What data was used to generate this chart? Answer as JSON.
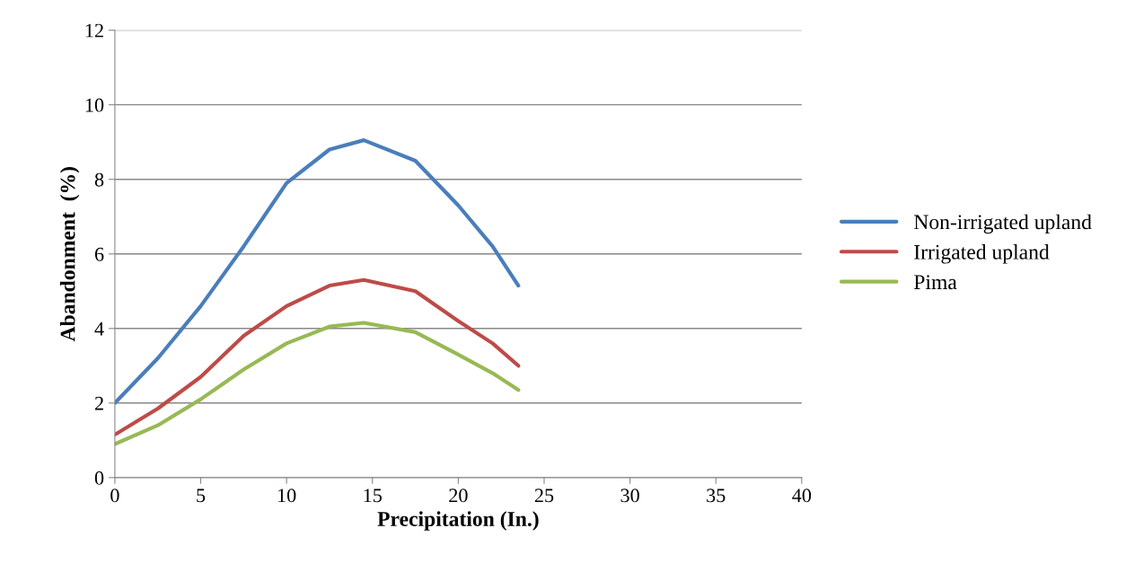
{
  "chart_data": {
    "type": "line",
    "xlabel": "Precipitation (In.)",
    "ylabel": "Abandonment  (%)",
    "xlim": [
      0,
      40
    ],
    "xticks": [
      0,
      5,
      10,
      15,
      20,
      25,
      30,
      35,
      40
    ],
    "ylim": [
      0,
      12
    ],
    "yticks": [
      0,
      2,
      4,
      6,
      8,
      10,
      12
    ],
    "grid": "y",
    "legend": "right",
    "marker": "none",
    "line_style": "solid",
    "x": [
      0,
      2.5,
      5,
      7.5,
      10,
      12.5,
      14.5,
      17.5,
      20,
      22,
      23.5
    ],
    "series": [
      {
        "name": "Non-irrigated upland",
        "color": "#4a7ebb",
        "values": [
          2.0,
          3.2,
          4.6,
          6.2,
          7.9,
          8.8,
          9.05,
          8.5,
          7.3,
          6.2,
          5.15
        ]
      },
      {
        "name": "Irrigated upland",
        "color": "#be4b48",
        "values": [
          1.15,
          1.85,
          2.7,
          3.8,
          4.6,
          5.15,
          5.3,
          5.0,
          4.2,
          3.6,
          3.0
        ]
      },
      {
        "name": "Pima",
        "color": "#98b954",
        "values": [
          0.9,
          1.4,
          2.1,
          2.9,
          3.6,
          4.05,
          4.15,
          3.9,
          3.3,
          2.8,
          2.35
        ]
      }
    ]
  }
}
